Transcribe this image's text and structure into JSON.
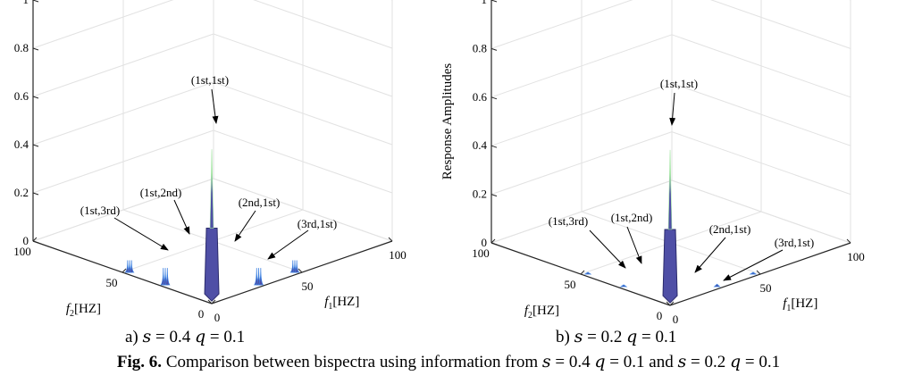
{
  "chart_data": [
    {
      "type": "surface3d",
      "panel_label": "a)",
      "params": {
        "s_name": "s",
        "s_value": "0.4",
        "q_name": "q",
        "q_value": "0.1"
      },
      "zlabel": "Response Amplitudes",
      "xlabel_var": "f",
      "xlabel_sub": "1",
      "xlabel_unit": "[HZ]",
      "ylabel_var": "f",
      "ylabel_sub": "2",
      "ylabel_unit": "[HZ]",
      "zlim": [
        0,
        1
      ],
      "xlim": [
        0,
        100
      ],
      "ylim": [
        0,
        100
      ],
      "z_ticks": [
        "0",
        "0.2",
        "0.4",
        "0.6",
        "0.8",
        "1"
      ],
      "x_ticks": [
        "0",
        "50",
        "100"
      ],
      "y_ticks": [
        "0",
        "50",
        "100"
      ],
      "grid": true,
      "peaks": [
        {
          "label": "(1st,1st)",
          "f1": 2,
          "f2": 2,
          "amplitude": 0.63
        },
        {
          "label": "(1st,2nd)",
          "f1": 2,
          "f2": 28,
          "amplitude": 0.07
        },
        {
          "label": "(1st,3rd)",
          "f1": 2,
          "f2": 48,
          "amplitude": 0.05
        },
        {
          "label": "(2nd,1st)",
          "f1": 28,
          "f2": 2,
          "amplitude": 0.07
        },
        {
          "label": "(3rd,1st)",
          "f1": 48,
          "f2": 2,
          "amplitude": 0.05
        }
      ]
    },
    {
      "type": "surface3d",
      "panel_label": "b)",
      "params": {
        "s_name": "s",
        "s_value": "0.2",
        "q_name": "q",
        "q_value": "0.1"
      },
      "zlabel": "Response Amplitudes",
      "xlabel_var": "f",
      "xlabel_sub": "1",
      "xlabel_unit": "[HZ]",
      "ylabel_var": "f",
      "ylabel_sub": "2",
      "ylabel_unit": "[HZ]",
      "zlim": [
        0,
        1
      ],
      "xlim": [
        0,
        100
      ],
      "ylim": [
        0,
        100
      ],
      "z_ticks": [
        "0",
        "0.2",
        "0.4",
        "0.6",
        "0.8",
        "1"
      ],
      "x_ticks": [
        "0",
        "50",
        "100"
      ],
      "y_ticks": [
        "0",
        "50",
        "100"
      ],
      "grid": true,
      "peaks": [
        {
          "label": "(1st,1st)",
          "f1": 2,
          "f2": 2,
          "amplitude": 0.63
        },
        {
          "label": "(1st,2nd)",
          "f1": 2,
          "f2": 28,
          "amplitude": 0.005
        },
        {
          "label": "(1st,3rd)",
          "f1": 2,
          "f2": 48,
          "amplitude": 0.003
        },
        {
          "label": "(2nd,1st)",
          "f1": 28,
          "f2": 2,
          "amplitude": 0.01
        },
        {
          "label": "(3rd,1st)",
          "f1": 48,
          "f2": 2,
          "amplitude": 0.006
        }
      ]
    }
  ],
  "figure": {
    "fig_label": "Fig. 6.",
    "caption_text": "Comparison between bispectra using information from",
    "caption_s1": "0.4",
    "caption_q1": "0.1",
    "caption_and": "and",
    "caption_s2": "0.2",
    "caption_q2": "0.1",
    "s_name": "s",
    "q_name": "q",
    "equals": "="
  },
  "colors": {
    "axis": "#262626",
    "grid": "#e2e2e2",
    "peak_fill": "#4f4fa6",
    "peak_edge": "#3a7fe0",
    "peak_top": "#a6e6a6",
    "arrow": "#000000"
  }
}
